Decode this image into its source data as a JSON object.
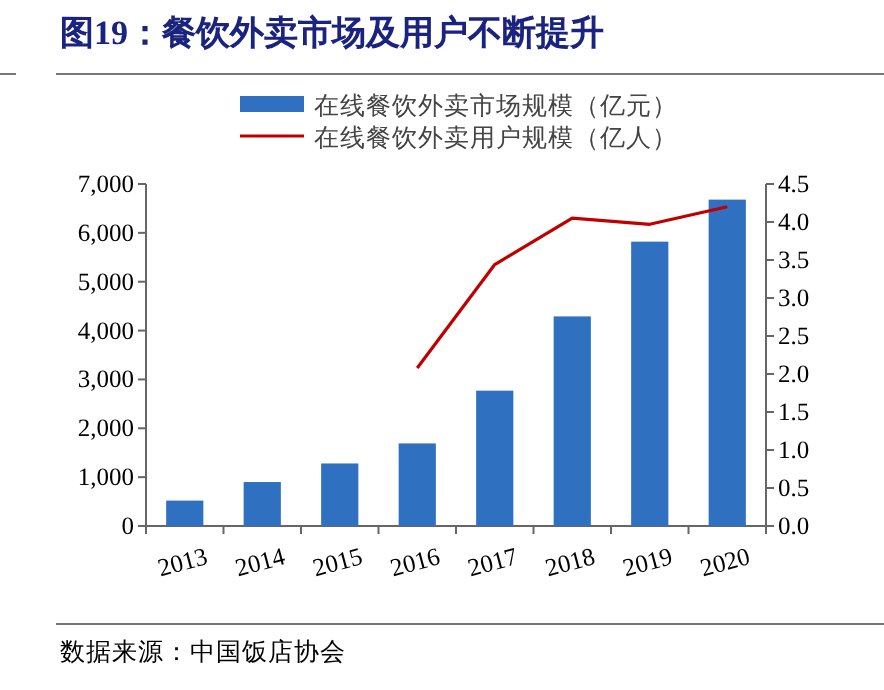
{
  "chart_data": {
    "type": "bar",
    "title": "图19：餐饮外卖市场及用户不断提升",
    "categories": [
      "2013",
      "2014",
      "2015",
      "2016",
      "2017",
      "2018",
      "2019",
      "2020"
    ],
    "series": [
      {
        "name": "在线餐饮外卖市场规模（亿元）",
        "color": "#3070c0",
        "values": [
          520,
          900,
          1280,
          1690,
          2770,
          4290,
          5820,
          6680
        ]
      },
      {
        "name": "在线餐饮外卖用户规模（亿人）",
        "type": "line",
        "axis": "y2",
        "color": "#c00000",
        "values": [
          null,
          null,
          null,
          2.08,
          3.44,
          4.05,
          3.97,
          4.2
        ]
      }
    ],
    "ylim": [
      0,
      7000
    ],
    "yticks": [
      {
        "value": 0,
        "label": "0"
      },
      {
        "value": 1000,
        "label": "1,000"
      },
      {
        "value": 2000,
        "label": "2,000"
      },
      {
        "value": 3000,
        "label": "3,000"
      },
      {
        "value": 4000,
        "label": "4,000"
      },
      {
        "value": 5000,
        "label": "5,000"
      },
      {
        "value": 6000,
        "label": "6,000"
      },
      {
        "value": 7000,
        "label": "7,000"
      }
    ],
    "y2lim": [
      0,
      4.5
    ],
    "y2ticks": [
      {
        "value": 0,
        "label": "0.0"
      },
      {
        "value": 0.5,
        "label": "0.5"
      },
      {
        "value": 1,
        "label": "1.0"
      },
      {
        "value": 1.5,
        "label": "1.5"
      },
      {
        "value": 2,
        "label": "2.0"
      },
      {
        "value": 2.5,
        "label": "2.5"
      },
      {
        "value": 3,
        "label": "3.0"
      },
      {
        "value": 3.5,
        "label": "3.5"
      },
      {
        "value": 4,
        "label": "4.0"
      },
      {
        "value": 4.5,
        "label": "4.5"
      }
    ],
    "legend": "top",
    "grid": false,
    "line_style": "solid",
    "marker": "none",
    "annotations": [
      "数据来源：中国饭店协会"
    ]
  }
}
